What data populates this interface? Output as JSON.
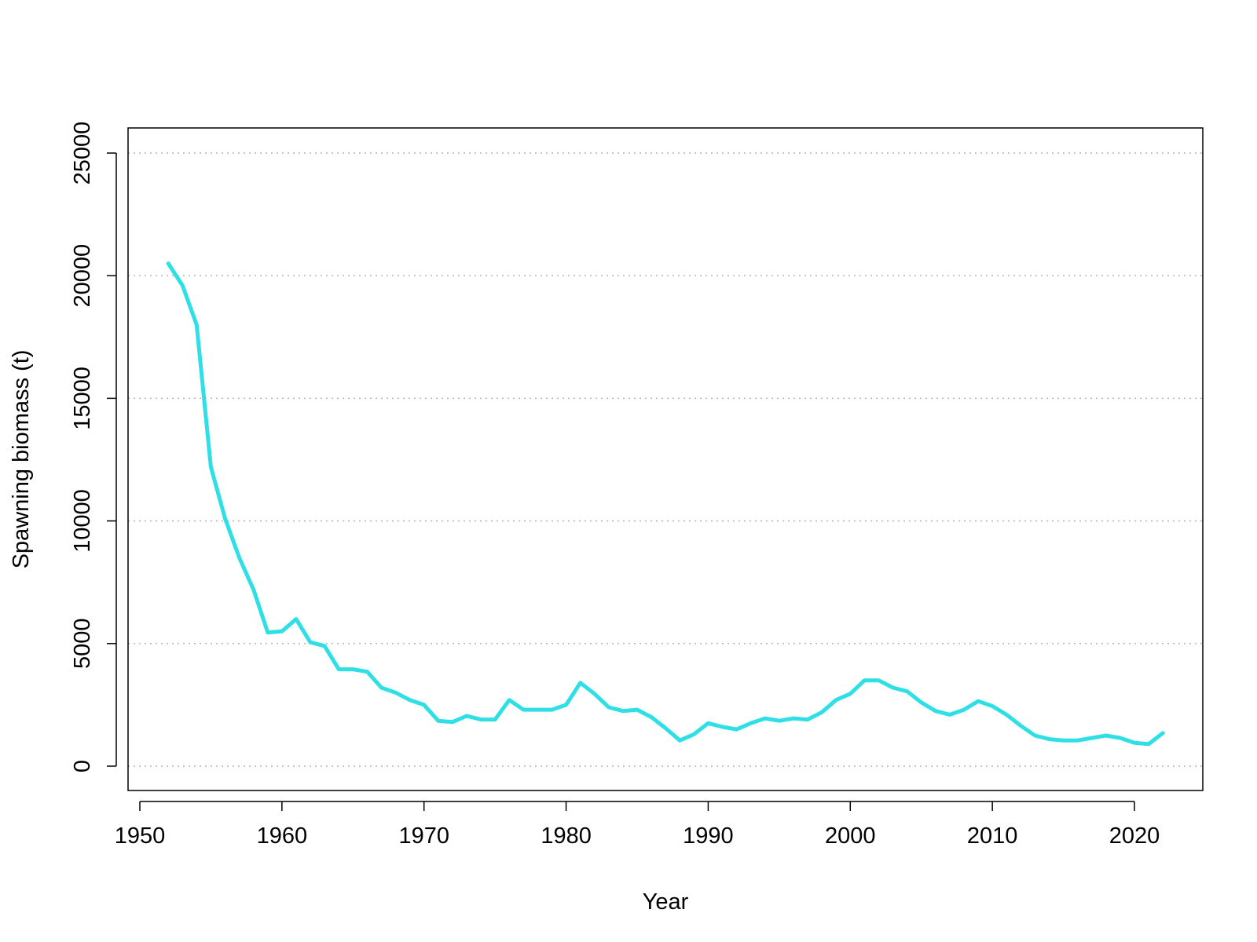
{
  "chart_data": {
    "type": "line",
    "title": "",
    "xlabel": "Year",
    "ylabel": "Spawning biomass (t)",
    "xlim": [
      1950,
      2022
    ],
    "ylim": [
      0,
      25000
    ],
    "x_ticks": [
      1950,
      1960,
      1970,
      1980,
      1990,
      2000,
      2010,
      2020
    ],
    "y_ticks": [
      0,
      5000,
      10000,
      15000,
      20000,
      25000
    ],
    "grid": "horizontal dotted",
    "legend": "none",
    "line_color": "#2ee0e6",
    "grid_color": "#b4b4b4",
    "series": [
      {
        "x": [
          1952,
          1953,
          1954,
          1955,
          1956,
          1957,
          1958,
          1959,
          1960,
          1961,
          1962,
          1963,
          1964,
          1965,
          1966,
          1967,
          1968,
          1969,
          1970,
          1971,
          1972,
          1973,
          1974,
          1975,
          1976,
          1977,
          1978,
          1979,
          1980,
          1981,
          1982,
          1983,
          1984,
          1985,
          1986,
          1987,
          1988,
          1989,
          1990,
          1991,
          1992,
          1993,
          1994,
          1995,
          1996,
          1997,
          1998,
          1999,
          2000,
          2001,
          2002,
          2003,
          2004,
          2005,
          2006,
          2007,
          2008,
          2009,
          2010,
          2011,
          2012,
          2013,
          2014,
          2015,
          2016,
          2017,
          2018,
          2019,
          2020,
          2021,
          2022
        ],
        "values": [
          20500,
          19600,
          18000,
          12200,
          10100,
          8500,
          7200,
          5450,
          5500,
          6000,
          5050,
          4900,
          3950,
          3950,
          3850,
          3200,
          3000,
          2700,
          2500,
          1850,
          1800,
          2050,
          1900,
          1900,
          2700,
          2300,
          2300,
          2300,
          2500,
          3400,
          2950,
          2400,
          2250,
          2300,
          2000,
          1550,
          1050,
          1300,
          1750,
          1600,
          1500,
          1750,
          1950,
          1850,
          1950,
          1900,
          2200,
          2700,
          2950,
          3500,
          3500,
          3200,
          3050,
          2600,
          2250,
          2100,
          2300,
          2650,
          2450,
          2100,
          1650,
          1250,
          1100,
          1050,
          1050,
          1150,
          1250,
          1150,
          950,
          900,
          1350
        ]
      }
    ]
  }
}
